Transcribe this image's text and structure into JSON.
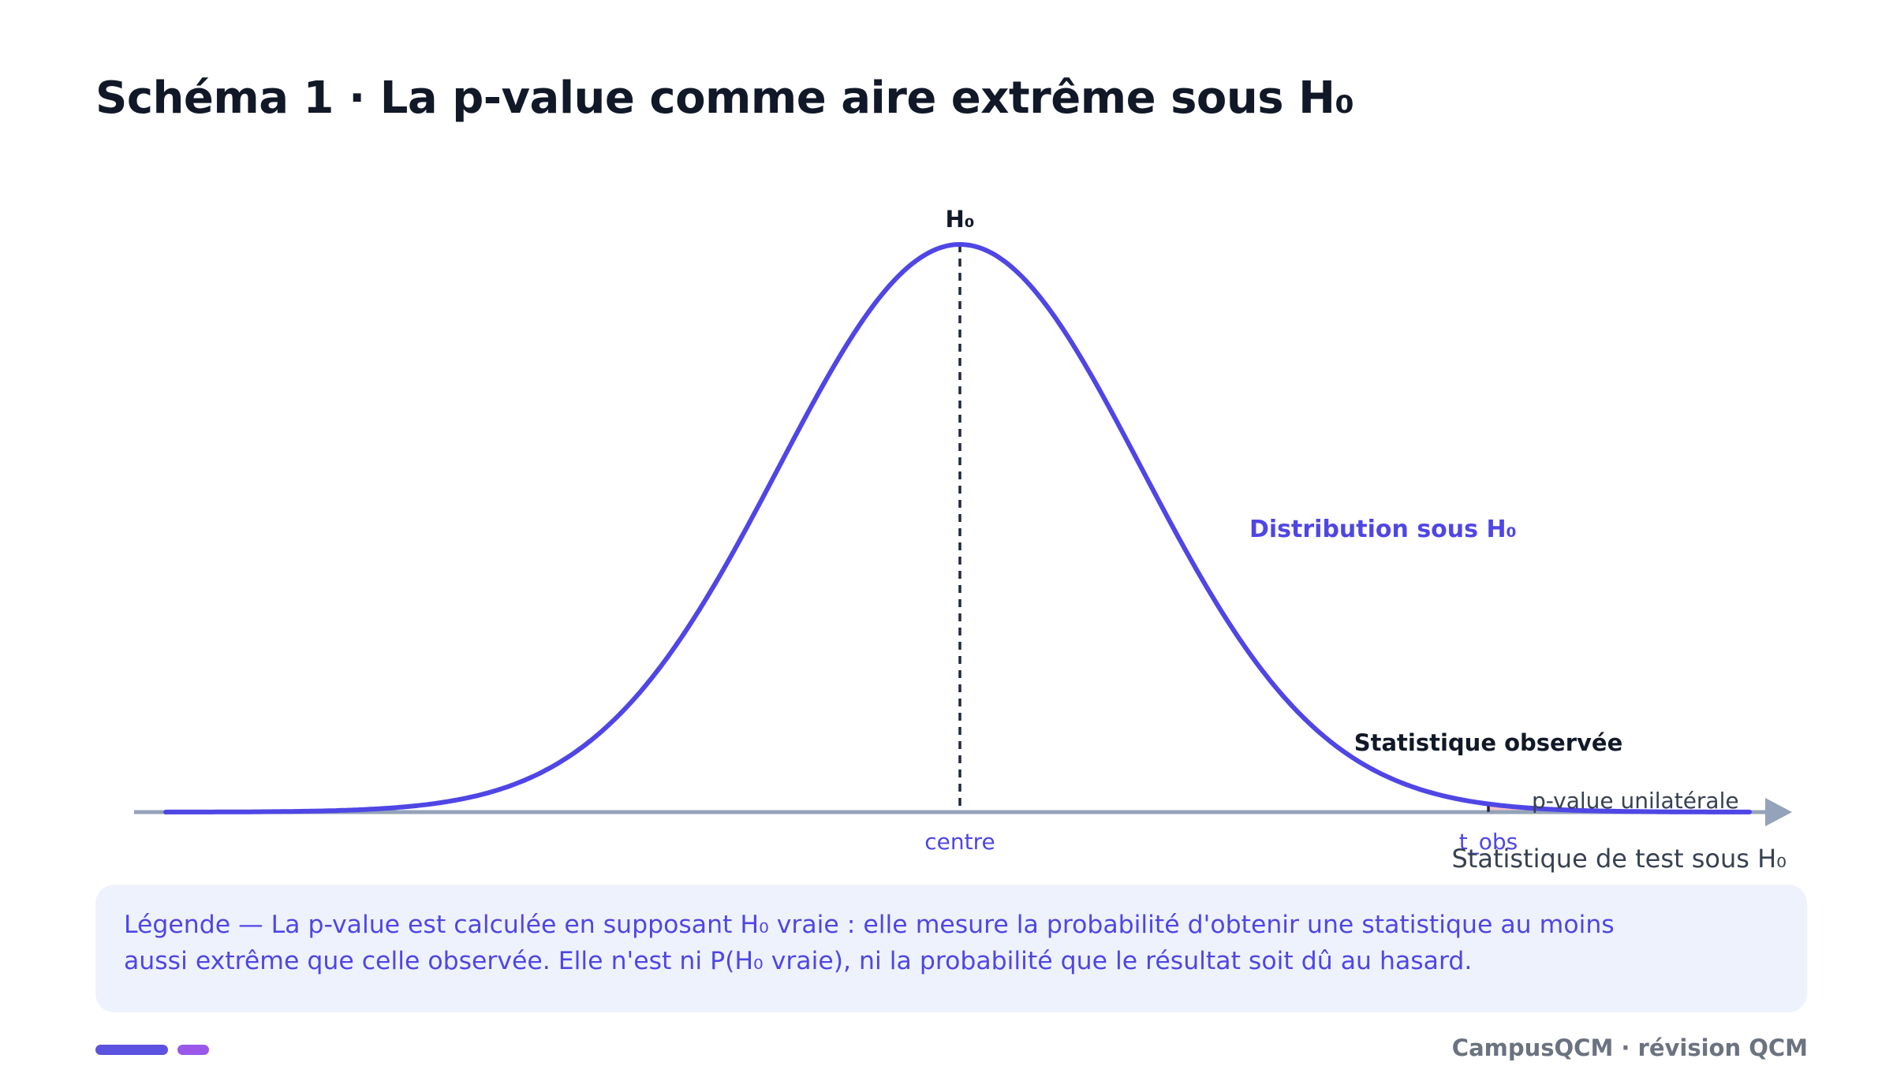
{
  "title": "Schéma 1 · La p-value comme aire extrême sous H₀",
  "diagram": {
    "peak_label": "H₀",
    "curve_label": "Distribution sous H₀",
    "observed_label": "Statistique observée",
    "tail_label": "p-value unilatérale",
    "center_tick_label": "centre",
    "tobs_tick_label": "t_obs",
    "axis_label": "Statistique de test sous H₀",
    "curve_color": "#4f46e5",
    "tail_fill_color": "#f6c0cb",
    "axis_color": "#94a3b8"
  },
  "legend": {
    "text": "Légende — La p-value est calculée en supposant H₀ vraie : elle mesure la probabilité d'obtenir une statistique au moins aussi extrême que celle observée. Elle n'est ni P(H₀ vraie), ni la probabilité que le résultat soit dû au hasard."
  },
  "footer": {
    "brand": "CampusQCM · révision QCM"
  }
}
